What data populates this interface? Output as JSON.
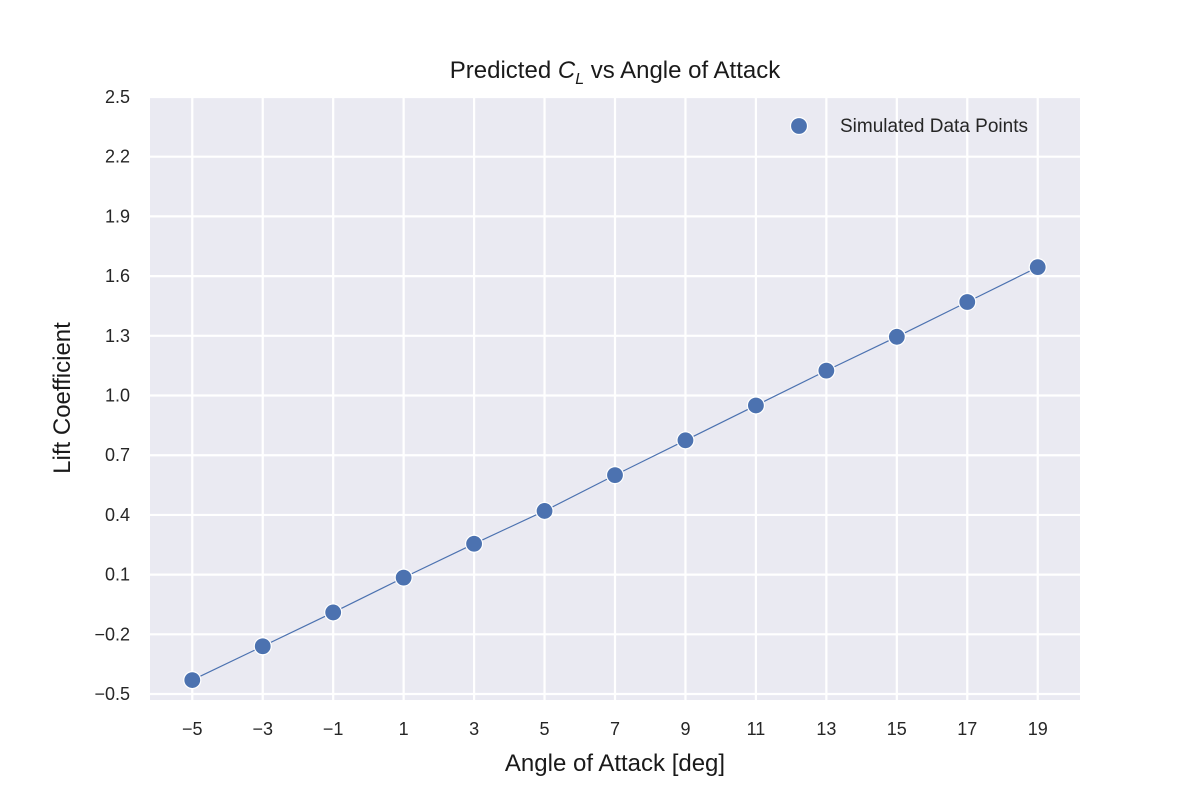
{
  "chart_data": {
    "type": "scatter",
    "title_prefix": "Predicted ",
    "title_math_base": "C",
    "title_math_sub": "L",
    "title_suffix": " vs Angle of Attack",
    "xlabel": "Angle of Attack [deg]",
    "ylabel": "Lift Coefficient",
    "x_ticks": [
      "−5",
      "−3",
      "−1",
      "1",
      "3",
      "5",
      "7",
      "9",
      "11",
      "13",
      "15",
      "17",
      "19"
    ],
    "y_ticks": [
      "−0.5",
      "−0.2",
      "0.1",
      "0.4",
      "0.7",
      "1.0",
      "1.3",
      "1.6",
      "1.9",
      "2.2",
      "2.5"
    ],
    "xlim": [
      -6.2,
      20.2
    ],
    "ylim": [
      -0.53,
      2.5
    ],
    "grid": true,
    "legend_position": "top-right",
    "series": [
      {
        "name": "Simulated Data Points",
        "color": "#4c72b0",
        "marker": "circle",
        "connected_line": true,
        "x": [
          -5,
          -3,
          -1,
          1,
          3,
          5,
          7,
          9,
          11,
          13,
          15,
          17,
          19
        ],
        "y": [
          -0.43,
          -0.26,
          -0.09,
          0.085,
          0.255,
          0.42,
          0.6,
          0.775,
          0.95,
          1.125,
          1.295,
          1.47,
          1.645
        ]
      }
    ]
  }
}
